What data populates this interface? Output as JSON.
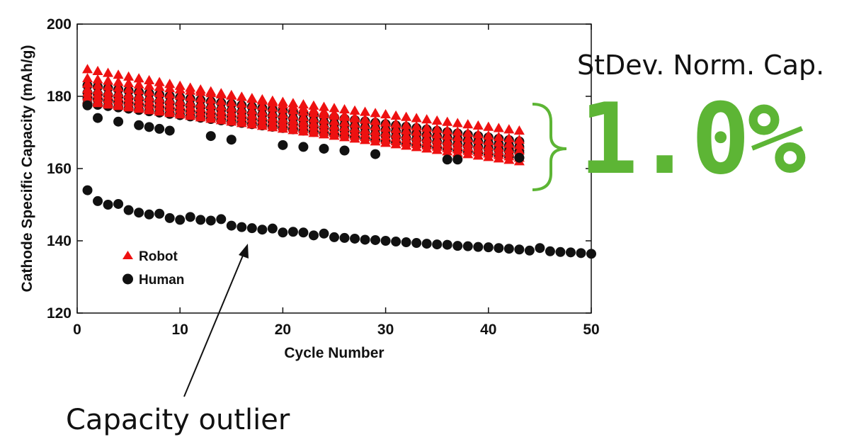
{
  "callout": {
    "title": "StDev. Norm. Cap.",
    "value": "1.0%",
    "accent_color": "#5db535"
  },
  "annotation": {
    "text": "Capacity outlier"
  },
  "chart_data": {
    "type": "scatter",
    "xlabel": "Cycle Number",
    "ylabel": "Cathode Specific Capacity (mAh/g)",
    "xlim": [
      0,
      50
    ],
    "ylim": [
      120,
      200
    ],
    "xticks": [
      0,
      10,
      20,
      30,
      40,
      50
    ],
    "yticks": [
      120,
      140,
      160,
      180,
      200
    ],
    "grid": false,
    "legend_position": "lower-left",
    "series": [
      {
        "name": "Robot",
        "marker": "triangle",
        "color": "#ee1111",
        "cycles": [
          1,
          43
        ],
        "curves": [
          {
            "start": 187.5,
            "end": 166.0
          },
          {
            "start": 185.0,
            "end": 170.5
          },
          {
            "start": 183.5,
            "end": 168.0
          },
          {
            "start": 182.0,
            "end": 166.5
          },
          {
            "start": 181.0,
            "end": 165.0
          },
          {
            "start": 180.0,
            "end": 164.0
          },
          {
            "start": 179.0,
            "end": 163.0
          },
          {
            "start": 178.5,
            "end": 162.0
          }
        ]
      },
      {
        "name": "Human",
        "marker": "circle",
        "color": "#111111",
        "cycles": [
          1,
          43
        ],
        "curves": [
          {
            "start": 183.0,
            "end": 167.5
          },
          {
            "start": 181.0,
            "end": 166.0
          },
          {
            "start": 179.5,
            "end": 164.5
          },
          {
            "start": 178.0,
            "end": 163.0
          }
        ],
        "scattered_points": [
          {
            "x": 1,
            "y": 177.5
          },
          {
            "x": 2,
            "y": 174.0
          },
          {
            "x": 4,
            "y": 173.0
          },
          {
            "x": 6,
            "y": 172.0
          },
          {
            "x": 7,
            "y": 171.5
          },
          {
            "x": 8,
            "y": 171.0
          },
          {
            "x": 9,
            "y": 170.5
          },
          {
            "x": 13,
            "y": 169.0
          },
          {
            "x": 15,
            "y": 168.0
          },
          {
            "x": 20,
            "y": 166.5
          },
          {
            "x": 22,
            "y": 166.0
          },
          {
            "x": 24,
            "y": 165.5
          },
          {
            "x": 26,
            "y": 165.0
          },
          {
            "x": 29,
            "y": 164.0
          },
          {
            "x": 36,
            "y": 162.5
          },
          {
            "x": 37,
            "y": 162.5
          },
          {
            "x": 43,
            "y": 163.0
          }
        ],
        "outlier_points": [
          {
            "x": 1,
            "y": 154.0
          },
          {
            "x": 2,
            "y": 151.0
          },
          {
            "x": 3,
            "y": 150.0
          },
          {
            "x": 4,
            "y": 150.2
          },
          {
            "x": 5,
            "y": 148.5
          },
          {
            "x": 6,
            "y": 147.8
          },
          {
            "x": 7,
            "y": 147.3
          },
          {
            "x": 8,
            "y": 147.5
          },
          {
            "x": 9,
            "y": 146.3
          },
          {
            "x": 10,
            "y": 145.8
          },
          {
            "x": 11,
            "y": 146.6
          },
          {
            "x": 12,
            "y": 145.8
          },
          {
            "x": 13,
            "y": 145.6
          },
          {
            "x": 14,
            "y": 146.0
          },
          {
            "x": 15,
            "y": 144.2
          },
          {
            "x": 16,
            "y": 143.8
          },
          {
            "x": 17,
            "y": 143.5
          },
          {
            "x": 18,
            "y": 143.1
          },
          {
            "x": 19,
            "y": 143.4
          },
          {
            "x": 20,
            "y": 142.3
          },
          {
            "x": 21,
            "y": 142.5
          },
          {
            "x": 22,
            "y": 142.3
          },
          {
            "x": 23,
            "y": 141.5
          },
          {
            "x": 24,
            "y": 142.0
          },
          {
            "x": 25,
            "y": 141.0
          },
          {
            "x": 26,
            "y": 140.8
          },
          {
            "x": 27,
            "y": 140.6
          },
          {
            "x": 28,
            "y": 140.3
          },
          {
            "x": 29,
            "y": 140.2
          },
          {
            "x": 30,
            "y": 140.0
          },
          {
            "x": 31,
            "y": 139.8
          },
          {
            "x": 32,
            "y": 139.6
          },
          {
            "x": 33,
            "y": 139.4
          },
          {
            "x": 34,
            "y": 139.2
          },
          {
            "x": 35,
            "y": 139.0
          },
          {
            "x": 36,
            "y": 138.9
          },
          {
            "x": 37,
            "y": 138.6
          },
          {
            "x": 38,
            "y": 138.5
          },
          {
            "x": 39,
            "y": 138.3
          },
          {
            "x": 40,
            "y": 138.2
          },
          {
            "x": 41,
            "y": 138.0
          },
          {
            "x": 42,
            "y": 137.8
          },
          {
            "x": 43,
            "y": 137.6
          },
          {
            "x": 44,
            "y": 137.3
          },
          {
            "x": 45,
            "y": 138.0
          },
          {
            "x": 46,
            "y": 137.1
          },
          {
            "x": 47,
            "y": 136.9
          },
          {
            "x": 48,
            "y": 136.8
          },
          {
            "x": 49,
            "y": 136.6
          },
          {
            "x": 50,
            "y": 136.4
          }
        ]
      }
    ]
  }
}
